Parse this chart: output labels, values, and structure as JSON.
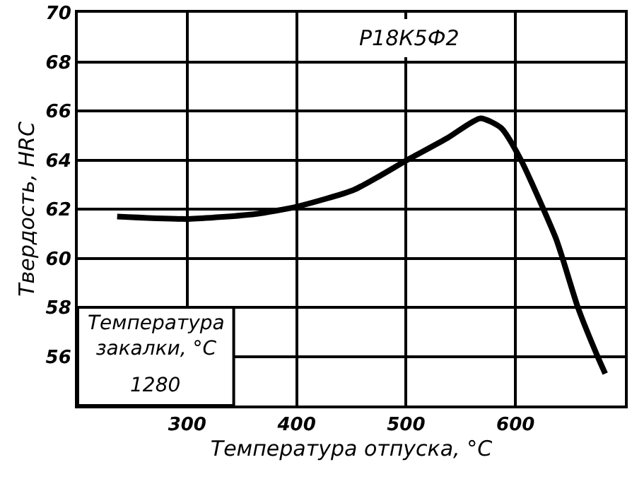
{
  "chart_data": {
    "type": "line",
    "xlabel": "Температура отпуска, °C",
    "ylabel": "Твердость, HRC",
    "annotations": [
      "Р18К5Ф2",
      "Температура закалки, °C",
      "1280"
    ],
    "x": [
      236,
      301,
      362,
      400,
      453,
      501,
      538,
      568,
      587,
      605,
      637,
      643,
      657,
      675,
      682
    ],
    "series": [
      {
        "color": "#000000",
        "values": [
          61.7,
          61.6,
          61.8,
          62.1,
          62.8,
          64.0,
          64.9,
          65.7,
          65.3,
          64.0,
          60.8,
          60.0,
          58.0,
          56.0,
          55.3
        ]
      }
    ],
    "xlim": [
      200,
      700
    ],
    "xticks": [
      300,
      400,
      500,
      600
    ],
    "ylim": [
      54,
      70
    ],
    "yticks": [
      56,
      58,
      60,
      62,
      64,
      66,
      68,
      70
    ],
    "grid": true,
    "marker": "none",
    "line_style": "solid"
  }
}
